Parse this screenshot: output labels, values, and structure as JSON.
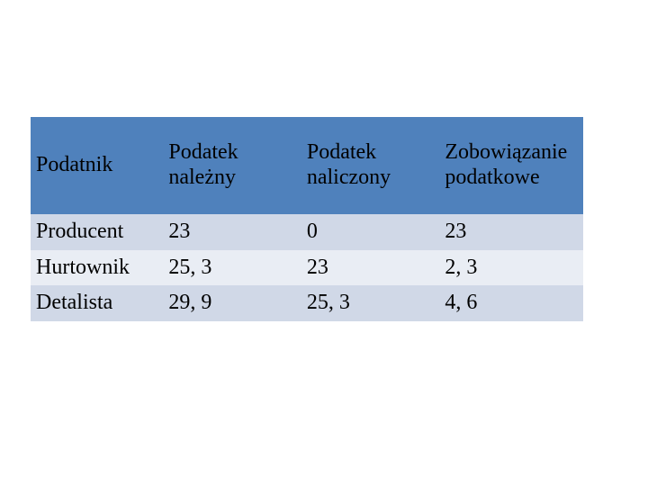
{
  "table": {
    "type": "table",
    "header_bg": "#4f81bc",
    "header_text_color": "#000000",
    "row_bg_odd": "#d0d8e7",
    "row_bg_even": "#e9edf4",
    "cell_text_color": "#000000",
    "font_family": "Georgia, 'Times New Roman', serif",
    "header_fontsize": 24,
    "cell_fontsize": 24,
    "columns": [
      {
        "label": "Podatnik",
        "width_pct": 24
      },
      {
        "label": "Podatek należny",
        "width_pct": 25
      },
      {
        "label": "Podatek naliczony",
        "width_pct": 25
      },
      {
        "label": "Zobowiązanie podatkowe",
        "width_pct": 26
      }
    ],
    "rows": [
      [
        "Producent",
        "23",
        "0",
        "23"
      ],
      [
        "Hurtownik",
        "25, 3",
        "23",
        "2, 3"
      ],
      [
        "Detalista",
        "29, 9",
        "25, 3",
        "4, 6"
      ]
    ]
  }
}
